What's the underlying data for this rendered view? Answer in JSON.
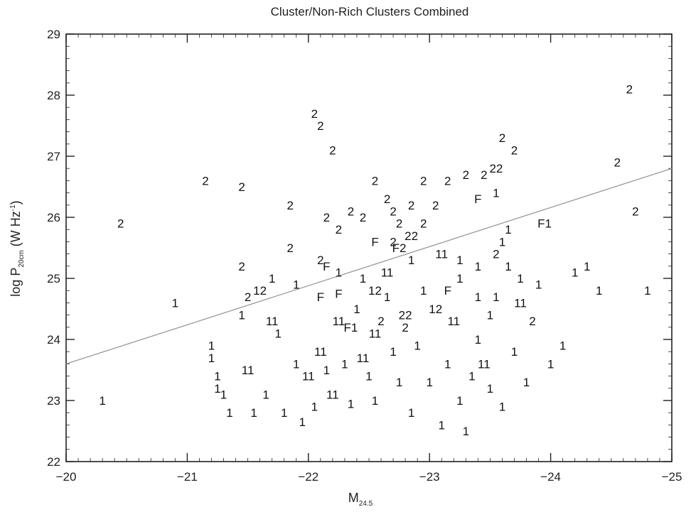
{
  "chart_data": {
    "type": "scatter",
    "title": "Cluster/Non-Rich Clusters Combined",
    "xlabel": {
      "main": "M",
      "sub": "24.5"
    },
    "ylabel": {
      "pre": "log P",
      "sub": "20cm",
      "post": " (W Hz",
      "sup": "-1",
      "end": ")"
    },
    "xlim": [
      -20,
      -25
    ],
    "ylim": [
      22,
      29
    ],
    "xticks": [
      -20,
      -21,
      -22,
      -23,
      -24,
      -25
    ],
    "yticks": [
      22,
      23,
      24,
      25,
      26,
      27,
      28,
      29
    ],
    "xtick_labels": [
      "−20",
      "−21",
      "−22",
      "−23",
      "−24",
      "−25"
    ],
    "ytick_labels": [
      "22",
      "23",
      "24",
      "25",
      "26",
      "27",
      "28",
      "29"
    ],
    "line": {
      "x": [
        -20,
        -25
      ],
      "y": [
        23.6,
        26.8
      ]
    },
    "colors": {
      "axis": "#222222",
      "line": "#999999",
      "marker": "#111111"
    },
    "points": [
      {
        "x": -20.3,
        "y": 23.0,
        "label": "1"
      },
      {
        "x": -20.9,
        "y": 24.6,
        "label": "1"
      },
      {
        "x": -21.2,
        "y": 23.9,
        "label": "1"
      },
      {
        "x": -21.2,
        "y": 23.7,
        "label": "1"
      },
      {
        "x": -21.25,
        "y": 23.4,
        "label": "1"
      },
      {
        "x": -21.25,
        "y": 23.2,
        "label": "1"
      },
      {
        "x": -21.3,
        "y": 23.1,
        "label": "1"
      },
      {
        "x": -21.35,
        "y": 22.8,
        "label": "1"
      },
      {
        "x": -21.5,
        "y": 23.5,
        "label": "11"
      },
      {
        "x": -21.55,
        "y": 22.8,
        "label": "1"
      },
      {
        "x": -21.65,
        "y": 23.1,
        "label": "1"
      },
      {
        "x": -21.7,
        "y": 24.3,
        "label": "11"
      },
      {
        "x": -21.75,
        "y": 24.1,
        "label": "1"
      },
      {
        "x": -21.6,
        "y": 24.8,
        "label": "12"
      },
      {
        "x": -21.7,
        "y": 25.0,
        "label": "1"
      },
      {
        "x": -21.5,
        "y": 24.7,
        "label": "2"
      },
      {
        "x": -21.45,
        "y": 24.4,
        "label": "1"
      },
      {
        "x": -21.9,
        "y": 24.9,
        "label": "1"
      },
      {
        "x": -21.8,
        "y": 22.8,
        "label": "1"
      },
      {
        "x": -21.9,
        "y": 23.6,
        "label": "1"
      },
      {
        "x": -21.95,
        "y": 22.65,
        "label": "1"
      },
      {
        "x": -22.0,
        "y": 23.4,
        "label": "11"
      },
      {
        "x": -22.05,
        "y": 22.9,
        "label": "1"
      },
      {
        "x": -22.1,
        "y": 23.8,
        "label": "11"
      },
      {
        "x": -22.15,
        "y": 23.5,
        "label": "1"
      },
      {
        "x": -22.2,
        "y": 23.1,
        "label": "11"
      },
      {
        "x": -22.25,
        "y": 24.3,
        "label": "11"
      },
      {
        "x": -22.3,
        "y": 23.6,
        "label": "1"
      },
      {
        "x": -22.35,
        "y": 22.95,
        "label": "1"
      },
      {
        "x": -22.4,
        "y": 24.5,
        "label": "1"
      },
      {
        "x": -22.45,
        "y": 23.7,
        "label": "11"
      },
      {
        "x": -22.5,
        "y": 23.4,
        "label": "1"
      },
      {
        "x": -22.55,
        "y": 23.0,
        "label": "1"
      },
      {
        "x": -22.6,
        "y": 24.3,
        "label": "2"
      },
      {
        "x": -22.65,
        "y": 24.7,
        "label": "1"
      },
      {
        "x": -22.7,
        "y": 23.8,
        "label": "1"
      },
      {
        "x": -22.75,
        "y": 23.3,
        "label": "1"
      },
      {
        "x": -22.8,
        "y": 24.4,
        "label": "22"
      },
      {
        "x": -22.85,
        "y": 22.8,
        "label": "1"
      },
      {
        "x": -22.9,
        "y": 23.9,
        "label": "1"
      },
      {
        "x": -22.95,
        "y": 24.8,
        "label": "1"
      },
      {
        "x": -23.0,
        "y": 23.3,
        "label": "1"
      },
      {
        "x": -23.05,
        "y": 24.5,
        "label": "12"
      },
      {
        "x": -23.1,
        "y": 22.6,
        "label": "1"
      },
      {
        "x": -23.15,
        "y": 23.6,
        "label": "1"
      },
      {
        "x": -23.2,
        "y": 24.3,
        "label": "11"
      },
      {
        "x": -23.25,
        "y": 23.0,
        "label": "1"
      },
      {
        "x": -23.3,
        "y": 22.5,
        "label": "1"
      },
      {
        "x": -23.35,
        "y": 23.4,
        "label": "1"
      },
      {
        "x": -23.4,
        "y": 24.0,
        "label": "1"
      },
      {
        "x": -23.45,
        "y": 23.6,
        "label": "11"
      },
      {
        "x": -23.5,
        "y": 23.2,
        "label": "1"
      },
      {
        "x": -23.55,
        "y": 24.7,
        "label": "1"
      },
      {
        "x": -23.6,
        "y": 22.9,
        "label": "1"
      },
      {
        "x": -23.65,
        "y": 25.2,
        "label": "1"
      },
      {
        "x": -23.7,
        "y": 23.8,
        "label": "1"
      },
      {
        "x": -23.75,
        "y": 24.6,
        "label": "11"
      },
      {
        "x": -23.8,
        "y": 23.3,
        "label": "1"
      },
      {
        "x": -23.85,
        "y": 24.3,
        "label": "2"
      },
      {
        "x": -23.9,
        "y": 24.9,
        "label": "1"
      },
      {
        "x": -24.0,
        "y": 23.6,
        "label": "1"
      },
      {
        "x": -24.1,
        "y": 23.9,
        "label": "1"
      },
      {
        "x": -24.2,
        "y": 25.1,
        "label": "1"
      },
      {
        "x": -24.3,
        "y": 25.2,
        "label": "1"
      },
      {
        "x": -24.4,
        "y": 24.8,
        "label": "1"
      },
      {
        "x": -24.8,
        "y": 24.8,
        "label": "1"
      },
      {
        "x": -22.85,
        "y": 25.3,
        "label": "1"
      },
      {
        "x": -23.1,
        "y": 25.4,
        "label": "11"
      },
      {
        "x": -23.25,
        "y": 25.3,
        "label": "1"
      },
      {
        "x": -23.4,
        "y": 25.2,
        "label": "1"
      },
      {
        "x": -23.55,
        "y": 25.4,
        "label": "2"
      },
      {
        "x": -23.75,
        "y": 25.0,
        "label": "1"
      },
      {
        "x": -22.65,
        "y": 25.1,
        "label": "11"
      },
      {
        "x": -22.45,
        "y": 25.0,
        "label": "1"
      },
      {
        "x": -22.55,
        "y": 24.8,
        "label": "12"
      },
      {
        "x": -22.35,
        "y": 24.2,
        "label": "F1"
      },
      {
        "x": -22.8,
        "y": 24.2,
        "label": "2"
      },
      {
        "x": -23.15,
        "y": 24.8,
        "label": "F"
      },
      {
        "x": -23.25,
        "y": 25.0,
        "label": "1"
      },
      {
        "x": -23.4,
        "y": 24.7,
        "label": "1"
      },
      {
        "x": -23.5,
        "y": 24.4,
        "label": "1"
      },
      {
        "x": -22.1,
        "y": 24.7,
        "label": "F"
      },
      {
        "x": -22.25,
        "y": 24.75,
        "label": "F"
      },
      {
        "x": -21.15,
        "y": 26.6,
        "label": "2"
      },
      {
        "x": -20.45,
        "y": 25.9,
        "label": "2"
      },
      {
        "x": -21.45,
        "y": 26.5,
        "label": "2"
      },
      {
        "x": -21.45,
        "y": 25.2,
        "label": "2"
      },
      {
        "x": -21.85,
        "y": 26.2,
        "label": "2"
      },
      {
        "x": -21.85,
        "y": 25.5,
        "label": "2"
      },
      {
        "x": -22.05,
        "y": 27.7,
        "label": "2"
      },
      {
        "x": -22.1,
        "y": 27.5,
        "label": "2"
      },
      {
        "x": -22.15,
        "y": 26.0,
        "label": "2"
      },
      {
        "x": -22.2,
        "y": 27.1,
        "label": "2"
      },
      {
        "x": -22.25,
        "y": 25.8,
        "label": "2"
      },
      {
        "x": -22.35,
        "y": 26.1,
        "label": "2"
      },
      {
        "x": -22.45,
        "y": 26.0,
        "label": "2"
      },
      {
        "x": -22.55,
        "y": 26.6,
        "label": "2"
      },
      {
        "x": -22.65,
        "y": 26.3,
        "label": "2"
      },
      {
        "x": -22.7,
        "y": 26.1,
        "label": "2"
      },
      {
        "x": -22.75,
        "y": 25.9,
        "label": "2"
      },
      {
        "x": -22.85,
        "y": 26.2,
        "label": "2"
      },
      {
        "x": -22.95,
        "y": 26.6,
        "label": "2"
      },
      {
        "x": -23.05,
        "y": 26.2,
        "label": "2"
      },
      {
        "x": -23.15,
        "y": 26.6,
        "label": "2"
      },
      {
        "x": -23.3,
        "y": 26.7,
        "label": "2"
      },
      {
        "x": -23.4,
        "y": 26.3,
        "label": "F"
      },
      {
        "x": -23.45,
        "y": 26.7,
        "label": "2"
      },
      {
        "x": -23.55,
        "y": 26.8,
        "label": "22"
      },
      {
        "x": -23.6,
        "y": 27.3,
        "label": "2"
      },
      {
        "x": -23.7,
        "y": 27.1,
        "label": "2"
      },
      {
        "x": -23.55,
        "y": 26.4,
        "label": "1"
      },
      {
        "x": -23.65,
        "y": 25.8,
        "label": "1"
      },
      {
        "x": -23.6,
        "y": 25.6,
        "label": "1"
      },
      {
        "x": -23.95,
        "y": 25.9,
        "label": "F1"
      },
      {
        "x": -22.7,
        "y": 25.6,
        "label": "2"
      },
      {
        "x": -22.85,
        "y": 25.7,
        "label": "22"
      },
      {
        "x": -22.95,
        "y": 25.9,
        "label": "2"
      },
      {
        "x": -22.75,
        "y": 25.5,
        "label": "F2"
      },
      {
        "x": -22.55,
        "y": 25.6,
        "label": "F"
      },
      {
        "x": -22.15,
        "y": 25.2,
        "label": "F"
      },
      {
        "x": -22.1,
        "y": 25.3,
        "label": "2"
      },
      {
        "x": -22.25,
        "y": 25.1,
        "label": "1"
      },
      {
        "x": -22.55,
        "y": 24.1,
        "label": "11"
      },
      {
        "x": -24.55,
        "y": 26.9,
        "label": "2"
      },
      {
        "x": -24.65,
        "y": 28.1,
        "label": "2"
      },
      {
        "x": -24.7,
        "y": 26.1,
        "label": "2"
      }
    ]
  }
}
